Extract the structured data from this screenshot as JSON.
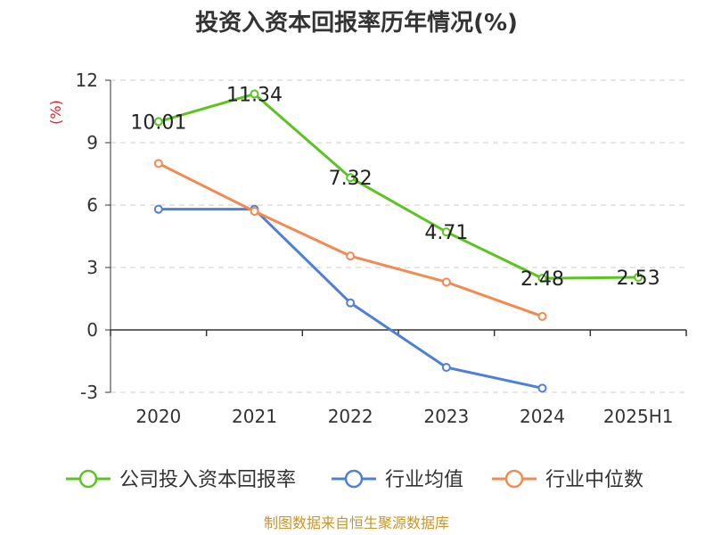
{
  "chart_data": {
    "type": "line",
    "title": "投资入资本回报率历年情况(%)",
    "ylabel": "(%)",
    "categories": [
      "2020",
      "2021",
      "2022",
      "2023",
      "2024",
      "2025H1"
    ],
    "ylim": [
      -3,
      12
    ],
    "yticks": [
      -3,
      0,
      3,
      6,
      9,
      12
    ],
    "ytick_labels": [
      "-3",
      "0",
      "3",
      "6",
      "9",
      "12"
    ],
    "grid": true,
    "legend_position": "bottom",
    "series": [
      {
        "name": "公司投入资本回报率",
        "color": "#5cc421",
        "values": [
          10.01,
          11.34,
          7.32,
          4.71,
          2.48,
          2.53
        ],
        "labels": [
          "10.01",
          "11.34",
          "7.32",
          "4.71",
          "2.48",
          "2.53"
        ]
      },
      {
        "name": "行业均值",
        "color": "#4f7fd6",
        "values": [
          5.8,
          5.8,
          1.3,
          -1.8,
          -2.8,
          null
        ]
      },
      {
        "name": "行业中位数",
        "color": "#f28a52",
        "values": [
          8.0,
          5.7,
          3.55,
          2.3,
          0.65,
          null
        ]
      }
    ],
    "source": "制图数据来自恒生聚源数据库",
    "source_color": "#c8962a",
    "ylabel_color": "#e02020"
  }
}
